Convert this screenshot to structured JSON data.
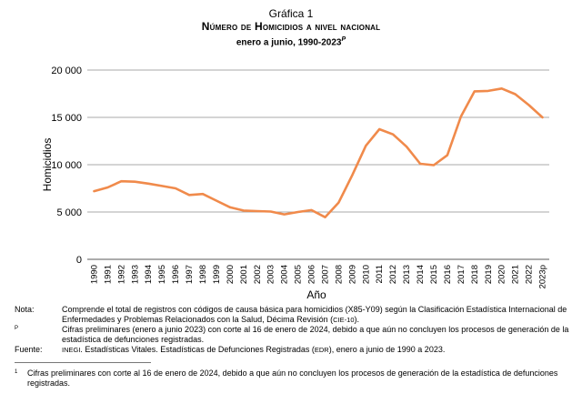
{
  "title": {
    "label": "Gráfica 1",
    "main": "Número de Homicidios a nivel nacional",
    "period": "enero a junio, 1990-2023",
    "period_mark": "P"
  },
  "chart_data": {
    "type": "line",
    "xlabel": "Año",
    "ylabel": "Homicidios",
    "ylim": [
      0,
      20000
    ],
    "yticks": [
      0,
      5000,
      10000,
      15000,
      20000
    ],
    "ytick_labels": [
      "0",
      "5 000",
      "10 000",
      "15 000",
      "20 000"
    ],
    "grid": true,
    "categories": [
      "1990",
      "1991",
      "1992",
      "1993",
      "1994",
      "1995",
      "1996",
      "1997",
      "1998",
      "1999",
      "2000",
      "2001",
      "2002",
      "2003",
      "2004",
      "2005",
      "2006",
      "2007",
      "2008",
      "2009",
      "2010",
      "2011",
      "2012",
      "2013",
      "2014",
      "2015",
      "2016",
      "2017",
      "2018",
      "2019",
      "2020",
      "2021",
      "2022",
      "2023p"
    ],
    "series": [
      {
        "color": "#f08a4b",
        "values": [
          7200,
          7600,
          8250,
          8200,
          8000,
          7750,
          7500,
          6800,
          6900,
          6200,
          5500,
          5150,
          5100,
          5050,
          4750,
          5000,
          5200,
          4450,
          6000,
          8900,
          12000,
          13750,
          13200,
          11900,
          10100,
          9950,
          11000,
          15100,
          17750,
          17800,
          18050,
          17450,
          16300,
          15000
        ]
      }
    ]
  },
  "notes": {
    "nota_key": "Nota:",
    "nota_text_1": "Comprende el total de registros con códigos de causa básica para homicidios (X85-Y09) según la Clasificación Estadística Internacional de Enfermedades y Problemas Relacionados con la Salud, Décima Revisión (",
    "nota_cie": "CIE-10",
    "nota_text_2": ").",
    "p_key": "P",
    "p_text": "Cifras preliminares (enero a junio 2023) con corte al 16 de enero de 2024, debido a que aún no concluyen los procesos de generación de la estadística de defunciones registradas.",
    "fuente_key": "Fuente:",
    "fuente_inegi": "INEGI",
    "fuente_text_1": ". Estadísticas Vitales. Estadísticas de Defunciones Registradas (",
    "fuente_edr": "EDR",
    "fuente_text_2": "), enero a junio de 1990 a 2023."
  },
  "footnote": {
    "mark": "1",
    "text": "Cifras preliminares con corte al 16 de enero de 2024, debido a que aún no concluyen los procesos de generación de la estadística de defunciones registradas."
  }
}
